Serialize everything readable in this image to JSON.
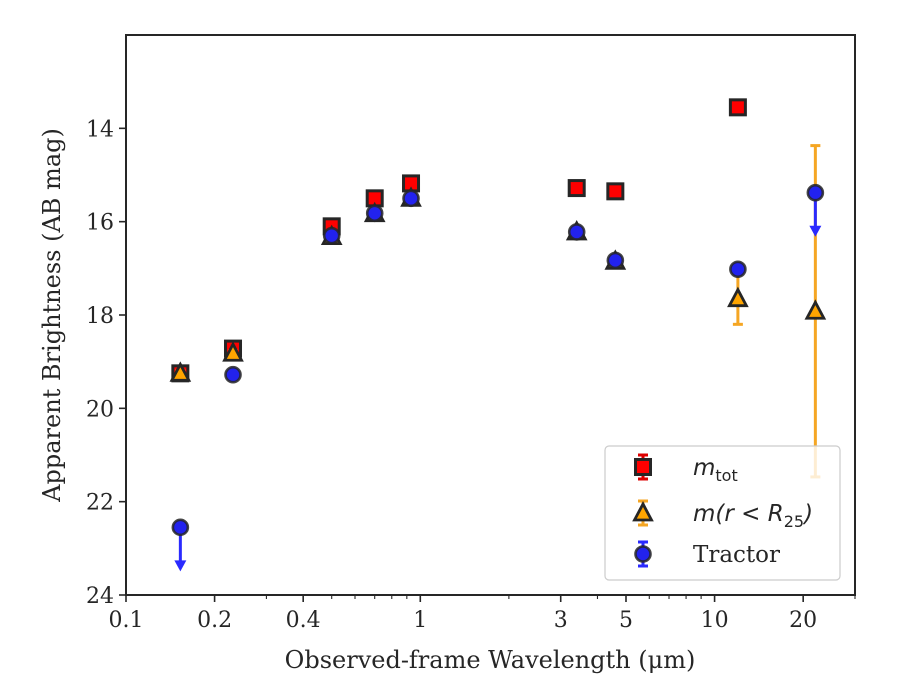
{
  "chart_data": {
    "type": "scatter",
    "xlabel": "Observed-frame Wavelength (μm)",
    "ylabel": "Apparent Brightness (AB mag)",
    "x_scale": "log",
    "xlim": [
      0.1,
      30
    ],
    "ylim": [
      24,
      12
    ],
    "y_inverted": true,
    "x_ticks": [
      0.1,
      0.2,
      0.4,
      1,
      3,
      5,
      10,
      20
    ],
    "x_tick_labels": [
      "0.1",
      "0.2",
      "0.4",
      "1",
      "3",
      "5",
      "10",
      "20"
    ],
    "y_ticks": [
      14,
      16,
      18,
      20,
      22,
      24
    ],
    "y_tick_labels": [
      "14",
      "16",
      "18",
      "20",
      "22",
      "24"
    ],
    "grid": false,
    "legend_position": "lower-right",
    "colors": {
      "mtot_fill": "#ff0000",
      "mtot_err": "#dd0000",
      "mr25_fill": "#ffa500",
      "mr25_err": "#f5a623",
      "tractor_fill": "#2222ee",
      "tractor_err": "#2a2aff",
      "marker_edge": "#262626"
    },
    "series": [
      {
        "name": "m_tot",
        "legend": {
          "base": "m",
          "sub": "tot"
        },
        "marker": "square",
        "points": [
          {
            "x": 0.153,
            "y": 19.25,
            "yerr": 0.05
          },
          {
            "x": 0.231,
            "y": 18.72,
            "yerr": 0.05
          },
          {
            "x": 0.5,
            "y": 16.1,
            "yerr": 0.05
          },
          {
            "x": 0.7,
            "y": 15.5,
            "yerr": 0.05
          },
          {
            "x": 0.93,
            "y": 15.18,
            "yerr": 0.05
          },
          {
            "x": 3.4,
            "y": 15.28,
            "yerr": 0.05
          },
          {
            "x": 4.6,
            "y": 15.35,
            "yerr": 0.05
          },
          {
            "x": 12.0,
            "y": 13.55,
            "yerr": 0.05
          }
        ]
      },
      {
        "name": "m(r < R25)",
        "legend": {
          "base": "m(r < R",
          "sub": "25",
          "suffix": ")"
        },
        "marker": "triangle",
        "points": [
          {
            "x": 0.153,
            "y": 19.25,
            "yerr": 0.05
          },
          {
            "x": 0.231,
            "y": 18.82,
            "yerr": 0.05
          },
          {
            "x": 0.5,
            "y": 16.32,
            "yerr": 0.05
          },
          {
            "x": 0.7,
            "y": 15.83,
            "yerr": 0.05
          },
          {
            "x": 0.93,
            "y": 15.5,
            "yerr": 0.05
          },
          {
            "x": 3.4,
            "y": 16.22,
            "yerr": 0.05
          },
          {
            "x": 4.6,
            "y": 16.85,
            "yerr": 0.05
          },
          {
            "x": 12.0,
            "y": 17.65,
            "yerr": 0.55
          },
          {
            "x": 22.0,
            "y": 17.92,
            "yerr": 3.55
          }
        ]
      },
      {
        "name": "Tractor",
        "legend": {
          "base": "Tractor"
        },
        "marker": "circle",
        "points": [
          {
            "x": 0.153,
            "y": 22.55,
            "upper_limit": true
          },
          {
            "x": 0.231,
            "y": 19.28,
            "yerr": 0.05
          },
          {
            "x": 0.5,
            "y": 16.3,
            "yerr": 0.05
          },
          {
            "x": 0.7,
            "y": 15.82,
            "yerr": 0.05
          },
          {
            "x": 0.93,
            "y": 15.5,
            "yerr": 0.05
          },
          {
            "x": 3.4,
            "y": 16.22,
            "yerr": 0.05
          },
          {
            "x": 4.6,
            "y": 16.83,
            "yerr": 0.05
          },
          {
            "x": 12.0,
            "y": 17.02,
            "yerr": 0.05
          },
          {
            "x": 22.0,
            "y": 15.38,
            "upper_limit": true
          }
        ]
      }
    ]
  }
}
